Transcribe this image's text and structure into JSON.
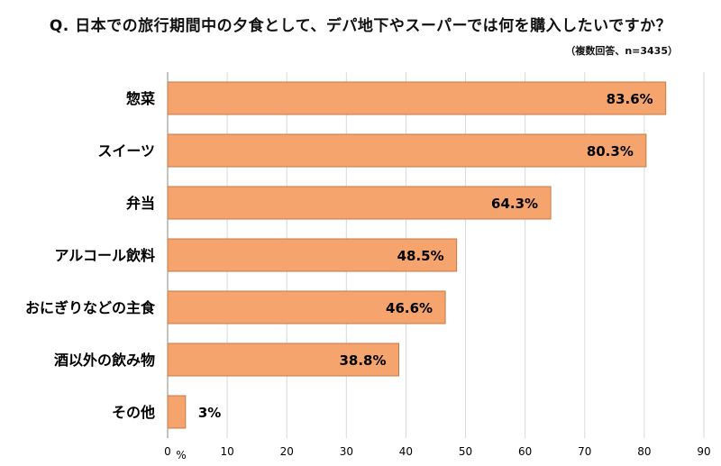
{
  "title": "Q. 日本での旅行期間中の夕食として、デパ地下やスーパーでは何を購入したいですか？",
  "note": "（複数回答、n=3435）",
  "chart_data": {
    "type": "bar",
    "orientation": "horizontal",
    "categories": [
      "惣菜",
      "スイーツ",
      "弁当",
      "アルコール飲料",
      "おにぎりなどの主食",
      "酒以外の飲み物",
      "その他"
    ],
    "values": [
      83.6,
      80.3,
      64.3,
      48.5,
      46.6,
      38.8,
      3
    ],
    "value_labels": [
      "83.6%",
      "80.3%",
      "64.3%",
      "48.5%",
      "46.6%",
      "38.8%",
      "3%"
    ],
    "xlim": [
      0,
      90
    ],
    "xticks": [
      0,
      10,
      20,
      30,
      40,
      50,
      60,
      70,
      80,
      90
    ],
    "xunit": "%",
    "bar_color": "#F6A46E",
    "bar_edge": "#C47A45",
    "grid": true
  }
}
